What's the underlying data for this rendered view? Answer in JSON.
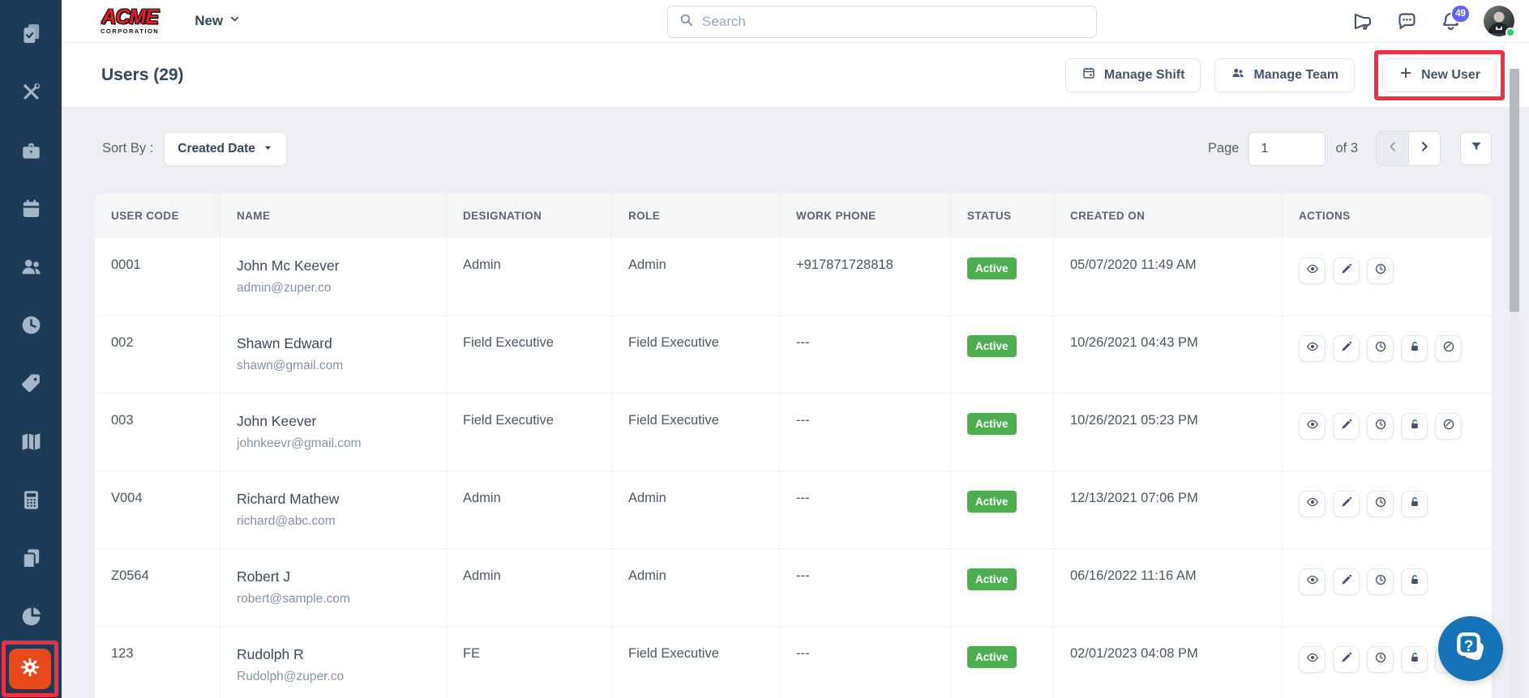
{
  "brand": {
    "name": "ACME",
    "sub": "CORPORATION"
  },
  "topbar": {
    "new_menu": "New",
    "search_placeholder": "Search",
    "notification_count": "49"
  },
  "page": {
    "title": "Users (29)"
  },
  "actions_bar": {
    "manage_shift": "Manage Shift",
    "manage_team": "Manage Team",
    "new_user": "New User"
  },
  "sort": {
    "label": "Sort By :",
    "value": "Created Date"
  },
  "pagination": {
    "page_label": "Page",
    "current": "1",
    "of_label": "of 3"
  },
  "table": {
    "headers": [
      "USER CODE",
      "NAME",
      "DESIGNATION",
      "ROLE",
      "WORK PHONE",
      "STATUS",
      "CREATED ON",
      "ACTIONS"
    ],
    "rows": [
      {
        "user_code": "0001",
        "name": "John Mc Keever",
        "email": "admin@zuper.co",
        "designation": "Admin",
        "role": "Admin",
        "work_phone": "+917871728818",
        "status": "Active",
        "created_on": "05/07/2020 11:49 AM",
        "actions": [
          "eye-icon",
          "pencil-icon",
          "clock-icon"
        ]
      },
      {
        "user_code": "002",
        "name": "Shawn Edward",
        "email": "shawn@gmail.com",
        "designation": "Field Executive",
        "role": "Field Executive",
        "work_phone": "---",
        "status": "Active",
        "created_on": "10/26/2021 04:43 PM",
        "actions": [
          "eye-icon",
          "pencil-icon",
          "clock-icon",
          "lock-icon",
          "ban-icon"
        ]
      },
      {
        "user_code": "003",
        "name": "John Keever",
        "email": "johnkeevr@gmail.com",
        "designation": "Field Executive",
        "role": "Field Executive",
        "work_phone": "---",
        "status": "Active",
        "created_on": "10/26/2021 05:23 PM",
        "actions": [
          "eye-icon",
          "pencil-icon",
          "clock-icon",
          "lock-icon",
          "ban-icon"
        ]
      },
      {
        "user_code": "V004",
        "name": "Richard Mathew",
        "email": "richard@abc.com",
        "designation": "Admin",
        "role": "Admin",
        "work_phone": "---",
        "status": "Active",
        "created_on": "12/13/2021 07:06 PM",
        "actions": [
          "eye-icon",
          "pencil-icon",
          "clock-icon",
          "lock-icon"
        ]
      },
      {
        "user_code": "Z0564",
        "name": "Robert J",
        "email": "robert@sample.com",
        "designation": "Admin",
        "role": "Admin",
        "work_phone": "---",
        "status": "Active",
        "created_on": "06/16/2022 11:16 AM",
        "actions": [
          "eye-icon",
          "pencil-icon",
          "clock-icon",
          "lock-icon"
        ]
      },
      {
        "user_code": "123",
        "name": "Rudolph R",
        "email": "Rudolph@zuper.co",
        "designation": "FE",
        "role": "Field Executive",
        "work_phone": "---",
        "status": "Active",
        "created_on": "02/01/2023 04:08 PM",
        "actions": [
          "eye-icon",
          "pencil-icon",
          "clock-icon",
          "lock-icon",
          "ban-icon"
        ]
      }
    ]
  },
  "sidebar": {
    "items": [
      {
        "icon": "clipboard-check-icon"
      },
      {
        "icon": "tools-icon"
      },
      {
        "icon": "briefcase-icon"
      },
      {
        "icon": "calendar-filled-icon"
      },
      {
        "icon": "people-icon"
      },
      {
        "icon": "clock-filled-icon"
      },
      {
        "icon": "tag-icon"
      },
      {
        "icon": "map-icon"
      },
      {
        "icon": "calculator-icon"
      },
      {
        "icon": "documents-icon"
      },
      {
        "icon": "pie-chart-icon"
      }
    ],
    "settings_icon": "gear-icon"
  },
  "fab_icon": "question-icon",
  "colors": {
    "sidebar_navy": "#1d3a56",
    "accent_orange": "#e8491d",
    "annotation_red": "#ee3142",
    "status_green": "#4cae50",
    "badge_indigo": "#6165f0",
    "fab_blue": "#1573b8",
    "brand_red": "#e11d25"
  }
}
